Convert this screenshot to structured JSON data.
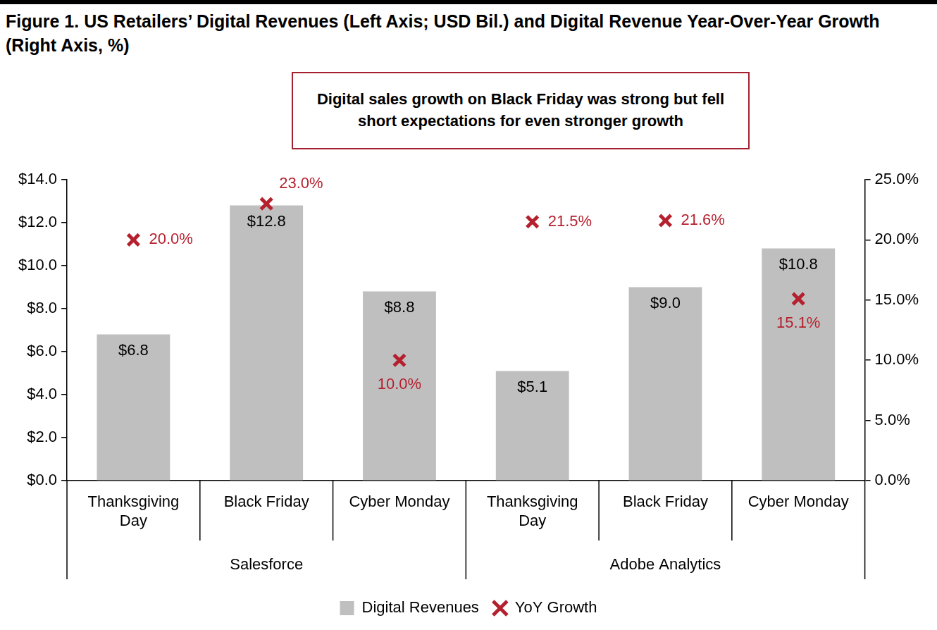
{
  "chart_data": {
    "type": "bar",
    "title": "Figure 1. US Retailers’ Digital Revenues (Left Axis; USD Bil.) and Digital Revenue Year-Over-Year Growth (Right Axis, %)",
    "annotation": "Digital sales growth on Black Friday was strong but fell short expectations for even stronger growth",
    "categories": [
      "Thanksgiving Day",
      "Black Friday",
      "Cyber Monday",
      "Thanksgiving Day",
      "Black Friday",
      "Cyber Monday"
    ],
    "groups": [
      "Salesforce",
      "Salesforce",
      "Salesforce",
      "Adobe Analytics",
      "Adobe Analytics",
      "Adobe Analytics"
    ],
    "series": [
      {
        "name": "Digital Revenues",
        "type": "bar",
        "color": "#bfbfbf",
        "values": [
          6.8,
          12.8,
          8.8,
          5.1,
          9.0,
          10.8
        ],
        "value_labels": [
          "$6.8",
          "$12.8",
          "$8.8",
          "$5.1",
          "$9.0",
          "$10.8"
        ]
      },
      {
        "name": "YoY Growth",
        "type": "scatter",
        "marker": "x",
        "color": "#b5202e",
        "axis": "y2",
        "values": [
          20.0,
          23.0,
          10.0,
          21.5,
          21.6,
          15.1
        ],
        "value_labels": [
          "20.0%",
          "23.0%",
          "10.0%",
          "21.5%",
          "21.6%",
          "15.1%"
        ]
      }
    ],
    "ylim": [
      0,
      14
    ],
    "yticks": [
      {
        "value": 0,
        "label": "$0.0"
      },
      {
        "value": 2,
        "label": "$2.0"
      },
      {
        "value": 4,
        "label": "$4.0"
      },
      {
        "value": 6,
        "label": "$6.0"
      },
      {
        "value": 8,
        "label": "$8.0"
      },
      {
        "value": 10,
        "label": "$10.0"
      },
      {
        "value": 12,
        "label": "$12.0"
      },
      {
        "value": 14,
        "label": "$14.0"
      }
    ],
    "y2lim": [
      0,
      25
    ],
    "y2ticks": [
      {
        "value": 0,
        "label": "0.0%"
      },
      {
        "value": 5,
        "label": "5.0%"
      },
      {
        "value": 10,
        "label": "10.0%"
      },
      {
        "value": 15,
        "label": "15.0%"
      },
      {
        "value": 20,
        "label": "20.0%"
      },
      {
        "value": 25,
        "label": "25.0%"
      }
    ],
    "grid": false,
    "legend": "bottom",
    "data_labels": true
  }
}
